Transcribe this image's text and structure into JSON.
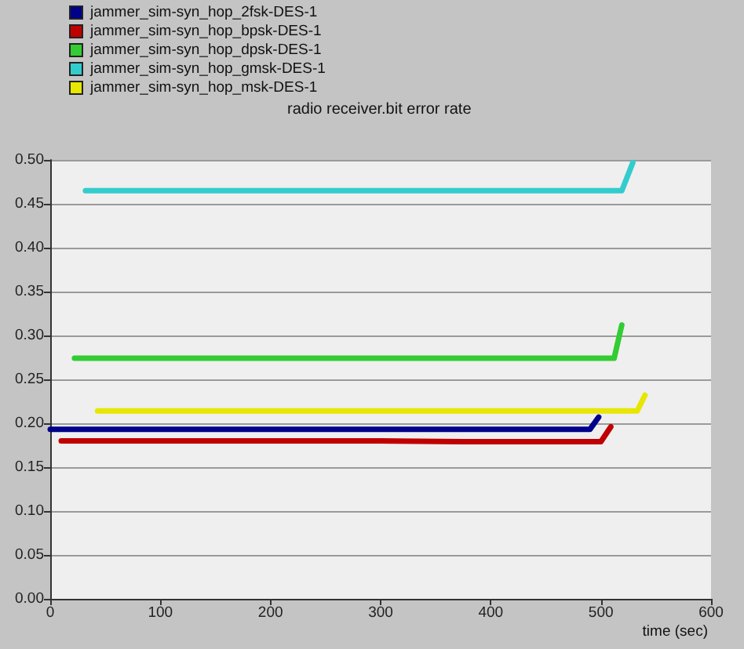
{
  "chart_data": {
    "type": "line",
    "title": "radio receiver.bit error rate",
    "xlabel": "time (sec)",
    "xlim": [
      0,
      600
    ],
    "xticks": [
      0,
      100,
      200,
      300,
      400,
      500,
      600
    ],
    "ylim": [
      0,
      0.5
    ],
    "yticks": [
      {
        "value": 0,
        "label": "0.00"
      },
      0.05,
      {
        "value": 0.1,
        "label": "0.10"
      },
      0.15,
      {
        "value": 0.2,
        "label": "0.20"
      },
      0.25,
      {
        "value": 0.3,
        "label": "0.30"
      },
      0.35,
      {
        "value": 0.4,
        "label": "0.40"
      },
      0.45,
      {
        "value": 0.5,
        "label": "0.50"
      }
    ],
    "grid": "y",
    "legend": "top left",
    "marker": "none",
    "line_style": "solid",
    "series": [
      {
        "name": "jammer_sim-syn_hop_2fsk-DES-1",
        "color": "#00008b",
        "x": [
          0,
          100,
          200,
          300,
          400,
          490,
          498
        ],
        "values": [
          0.193,
          0.193,
          0.193,
          0.193,
          0.193,
          0.193,
          0.207
        ]
      },
      {
        "name": "jammer_sim-syn_hop_bpsk-DES-1",
        "color": "#c00000",
        "x": [
          10,
          100,
          200,
          300,
          375,
          500,
          509
        ],
        "values": [
          0.18,
          0.18,
          0.18,
          0.18,
          0.179,
          0.179,
          0.196
        ]
      },
      {
        "name": "jammer_sim-syn_hop_dpsk-DES-1",
        "color": "#33cc33",
        "x": [
          22,
          100,
          200,
          300,
          400,
          512,
          519
        ],
        "values": [
          0.274,
          0.274,
          0.274,
          0.274,
          0.274,
          0.274,
          0.312
        ]
      },
      {
        "name": "jammer_sim-syn_hop_gmsk-DES-1",
        "color": "#33cccc",
        "x": [
          32,
          100,
          200,
          300,
          400,
          519,
          529
        ],
        "values": [
          0.465,
          0.465,
          0.465,
          0.465,
          0.465,
          0.465,
          0.497
        ]
      },
      {
        "name": "jammer_sim-syn_hop_msk-DES-1",
        "color": "#e6e600",
        "x": [
          43,
          100,
          200,
          300,
          400,
          533,
          540
        ],
        "values": [
          0.214,
          0.214,
          0.214,
          0.214,
          0.214,
          0.214,
          0.232
        ]
      }
    ]
  }
}
